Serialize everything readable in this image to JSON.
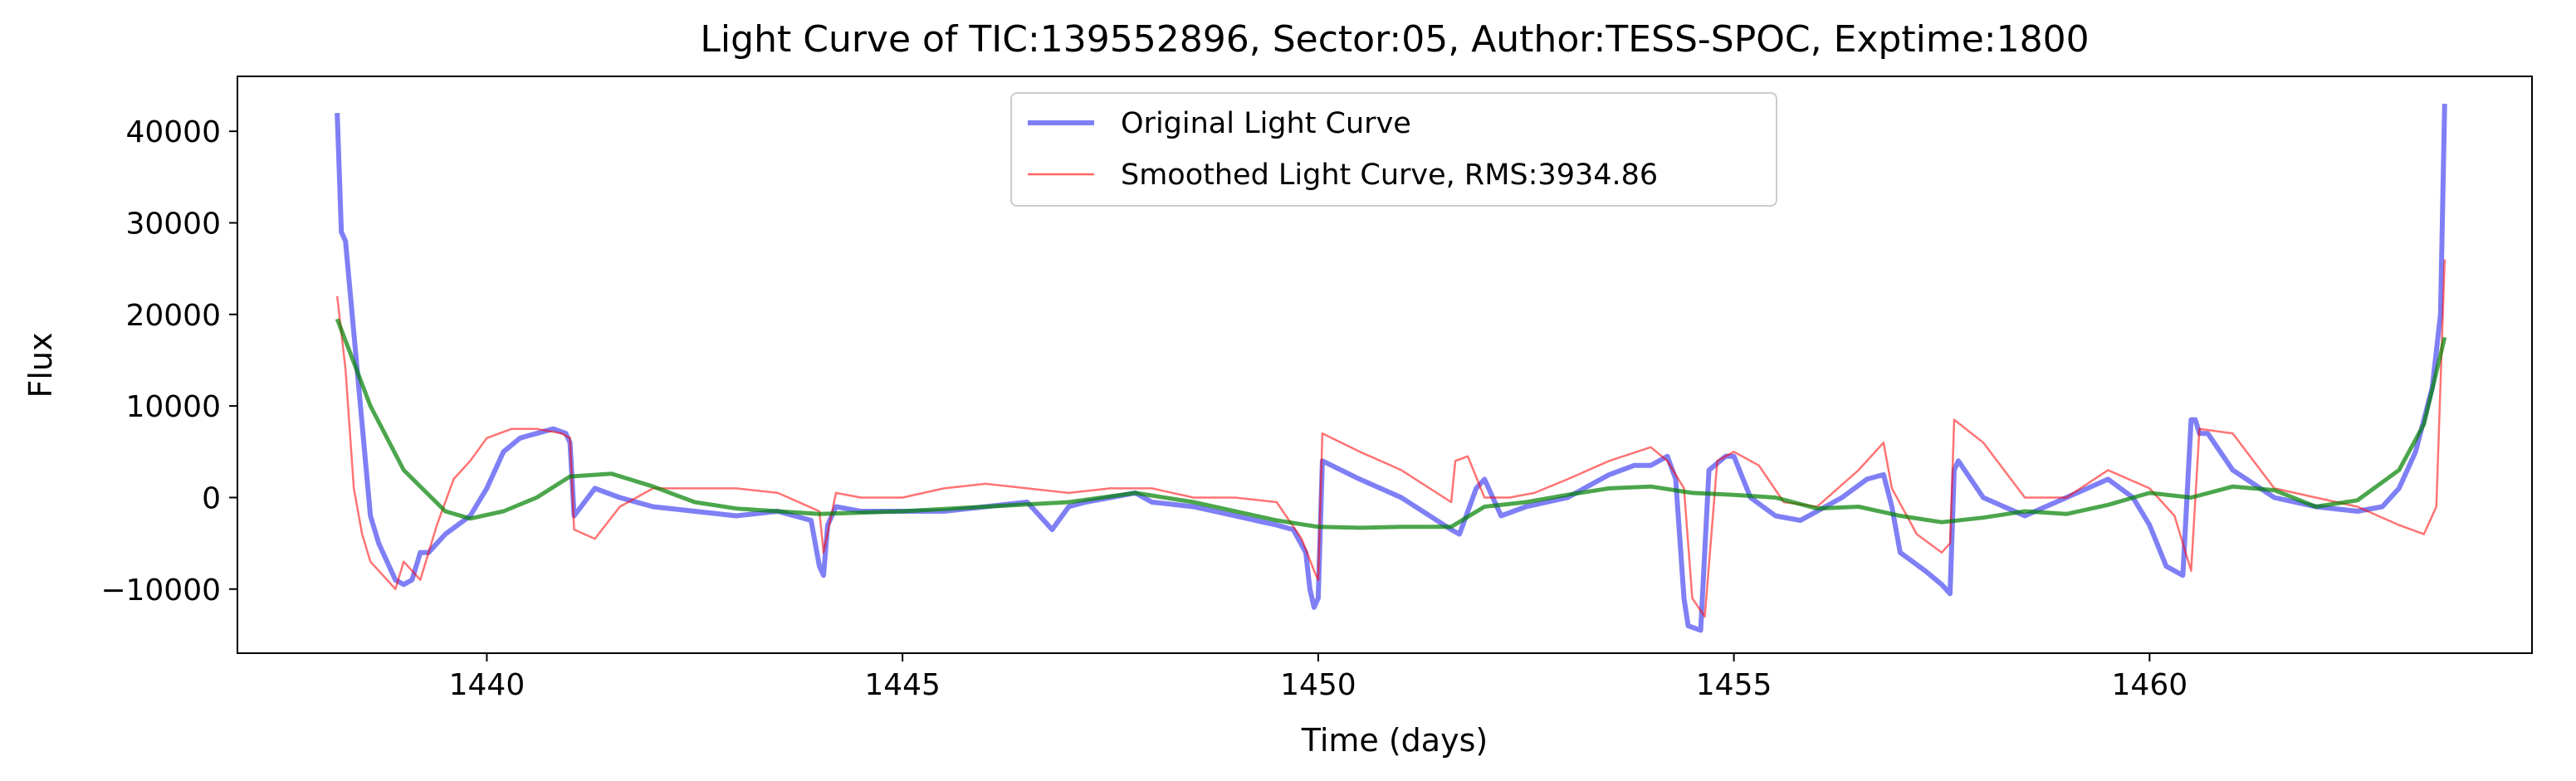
{
  "chart_data": {
    "type": "line",
    "title": "Light Curve of TIC:139552896, Sector:05, Author:TESS-SPOC, Exptime:1800",
    "xlabel": "Time (days)",
    "ylabel": "Flux",
    "xlim": [
      1437.0,
      1464.6
    ],
    "ylim": [
      -17000,
      46000
    ],
    "xticks": [
      1440,
      1445,
      1450,
      1455,
      1460
    ],
    "yticks": [
      -10000,
      0,
      10000,
      20000,
      30000,
      40000
    ],
    "grid": false,
    "legend_position": "top-center",
    "series": [
      {
        "name": "Original Light Curve",
        "color": "#0000ee",
        "x": [
          1438.2,
          1438.25,
          1438.3,
          1438.4,
          1438.5,
          1438.6,
          1438.7,
          1438.8,
          1438.9,
          1439.0,
          1439.1,
          1439.2,
          1439.3,
          1439.5,
          1439.8,
          1440.0,
          1440.2,
          1440.4,
          1440.6,
          1440.8,
          1440.95,
          1441.0,
          1441.05,
          1441.3,
          1441.6,
          1442.0,
          1442.5,
          1443.0,
          1443.5,
          1443.9,
          1444.0,
          1444.05,
          1444.1,
          1444.2,
          1444.5,
          1445.0,
          1445.5,
          1446.0,
          1446.5,
          1446.6,
          1446.8,
          1447.0,
          1447.2,
          1447.5,
          1447.8,
          1448.0,
          1448.5,
          1449.0,
          1449.5,
          1449.7,
          1449.85,
          1449.9,
          1449.95,
          1450.0,
          1450.05,
          1450.5,
          1451.0,
          1451.6,
          1451.7,
          1451.9,
          1452.0,
          1452.2,
          1452.5,
          1453.0,
          1453.2,
          1453.5,
          1453.8,
          1454.0,
          1454.2,
          1454.3,
          1454.4,
          1454.45,
          1454.6,
          1454.7,
          1454.9,
          1455.0,
          1455.2,
          1455.5,
          1455.8,
          1456.0,
          1456.3,
          1456.6,
          1456.8,
          1456.9,
          1457.0,
          1457.3,
          1457.5,
          1457.6,
          1457.65,
          1457.7,
          1458.0,
          1458.5,
          1459.0,
          1459.5,
          1459.8,
          1460.0,
          1460.2,
          1460.4,
          1460.5,
          1460.55,
          1460.6,
          1460.7,
          1461.0,
          1461.5,
          1462.0,
          1462.5,
          1462.8,
          1463.0,
          1463.2,
          1463.4,
          1463.5,
          1463.55
        ],
        "y": [
          42000,
          29000,
          28000,
          18000,
          8000,
          -2000,
          -5000,
          -7000,
          -9000,
          -9500,
          -9000,
          -6000,
          -6000,
          -4000,
          -2000,
          1000,
          5000,
          6500,
          7000,
          7500,
          7000,
          6000,
          -2000,
          1000,
          0,
          -1000,
          -1500,
          -2000,
          -1500,
          -2500,
          -7500,
          -8500,
          -3000,
          -1000,
          -1500,
          -1500,
          -1500,
          -1000,
          -500,
          -1500,
          -3500,
          -1000,
          -500,
          0,
          500,
          -500,
          -1000,
          -2000,
          -3000,
          -3500,
          -6000,
          -10000,
          -12000,
          -11000,
          4000,
          2000,
          0,
          -3500,
          -4000,
          1000,
          2000,
          -2000,
          -1000,
          0,
          1000,
          2500,
          3500,
          3500,
          4500,
          2000,
          -11000,
          -14000,
          -14500,
          3000,
          4500,
          4500,
          0,
          -2000,
          -2500,
          -1500,
          0,
          2000,
          2500,
          -1000,
          -6000,
          -8000,
          -9500,
          -10500,
          3000,
          4000,
          0,
          -2000,
          0,
          2000,
          0,
          -3000,
          -7500,
          -8500,
          8500,
          8500,
          7000,
          7000,
          3000,
          0,
          -1000,
          -1500,
          -1000,
          1000,
          5000,
          12000,
          20000,
          43000
        ]
      },
      {
        "name": "Smoothed Light Curve, RMS:3934.86",
        "color": "#ff0000",
        "x": [
          1438.2,
          1438.3,
          1438.4,
          1438.5,
          1438.6,
          1438.7,
          1438.8,
          1438.9,
          1439.0,
          1439.2,
          1439.4,
          1439.6,
          1439.8,
          1440.0,
          1440.3,
          1440.6,
          1440.9,
          1441.0,
          1441.05,
          1441.3,
          1441.6,
          1442.0,
          1442.5,
          1443.0,
          1443.5,
          1444.0,
          1444.05,
          1444.2,
          1444.5,
          1445.0,
          1445.5,
          1446.0,
          1446.5,
          1447.0,
          1447.5,
          1448.0,
          1448.5,
          1449.0,
          1449.5,
          1449.8,
          1449.95,
          1450.0,
          1450.05,
          1450.5,
          1451.0,
          1451.6,
          1451.65,
          1451.8,
          1452.0,
          1452.3,
          1452.6,
          1453.0,
          1453.5,
          1454.0,
          1454.2,
          1454.4,
          1454.5,
          1454.65,
          1454.8,
          1455.0,
          1455.3,
          1455.6,
          1456.0,
          1456.5,
          1456.8,
          1456.9,
          1457.2,
          1457.5,
          1457.6,
          1457.65,
          1458.0,
          1458.5,
          1459.0,
          1459.5,
          1460.0,
          1460.3,
          1460.5,
          1460.6,
          1461.0,
          1461.5,
          1462.0,
          1462.5,
          1463.0,
          1463.3,
          1463.45,
          1463.55
        ],
        "y": [
          22000,
          14000,
          1000,
          -4000,
          -7000,
          -8000,
          -9000,
          -10000,
          -7000,
          -9000,
          -3000,
          2000,
          4000,
          6500,
          7500,
          7500,
          7000,
          6500,
          -3500,
          -4500,
          -1000,
          1000,
          1000,
          1000,
          500,
          -1500,
          -6000,
          500,
          0,
          0,
          1000,
          1500,
          1000,
          500,
          1000,
          1000,
          0,
          0,
          -500,
          -4500,
          -8000,
          -9000,
          7000,
          5000,
          3000,
          -500,
          4000,
          4500,
          0,
          0,
          500,
          2000,
          4000,
          5500,
          4000,
          1000,
          -11000,
          -13000,
          4000,
          5000,
          3500,
          -500,
          -1000,
          3000,
          6000,
          1000,
          -4000,
          -6000,
          -5000,
          8500,
          6000,
          0,
          0,
          3000,
          1000,
          -2000,
          -8000,
          7500,
          7000,
          1000,
          0,
          -1000,
          -3000,
          -4000,
          -1000,
          26000
        ]
      },
      {
        "name": "",
        "color": "#008000",
        "x": [
          1438.2,
          1438.6,
          1439.0,
          1439.5,
          1439.8,
          1440.2,
          1440.6,
          1441.0,
          1441.5,
          1442.0,
          1442.5,
          1443.0,
          1444.0,
          1445.0,
          1446.0,
          1447.0,
          1447.8,
          1448.5,
          1449.0,
          1449.5,
          1450.0,
          1450.5,
          1451.0,
          1451.6,
          1452.0,
          1452.5,
          1453.0,
          1453.5,
          1454.0,
          1454.5,
          1455.0,
          1455.5,
          1456.0,
          1456.5,
          1457.0,
          1457.5,
          1458.0,
          1458.5,
          1459.0,
          1459.5,
          1460.0,
          1460.5,
          1461.0,
          1461.5,
          1462.0,
          1462.5,
          1463.0,
          1463.3,
          1463.55
        ],
        "y": [
          19500,
          10000,
          3000,
          -1500,
          -2300,
          -1500,
          0,
          2300,
          2600,
          1200,
          -500,
          -1200,
          -1800,
          -1500,
          -1000,
          -500,
          500,
          -500,
          -1500,
          -2500,
          -3200,
          -3300,
          -3200,
          -3200,
          -1000,
          -500,
          300,
          1000,
          1200,
          500,
          300,
          0,
          -1200,
          -1000,
          -2000,
          -2700,
          -2200,
          -1500,
          -1800,
          -800,
          500,
          0,
          1200,
          800,
          -1000,
          -300,
          3000,
          8000,
          17500
        ]
      }
    ]
  }
}
